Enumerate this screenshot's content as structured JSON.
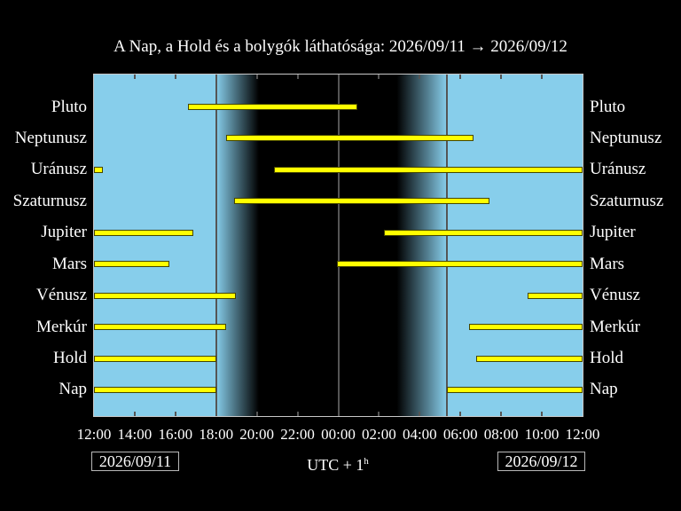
{
  "title": "A Nap, a Hold és a bolygók láthatósága: 2026/09/11 → 2026/09/12",
  "chart_data": {
    "type": "bar",
    "subtype": "horizontal-visibility-intervals",
    "title": "A Nap, a Hold és a bolygók láthatósága: 2026/09/11 → 2026/09/12",
    "x_axis": {
      "tick_labels": [
        "12:00",
        "14:00",
        "16:00",
        "18:00",
        "20:00",
        "22:00",
        "00:00",
        "02:00",
        "04:00",
        "06:00",
        "08:00",
        "10:00",
        "12:00"
      ],
      "left_edge_time": "12:00",
      "hours_span": 24,
      "timezone": "UTC + 1h"
    },
    "rows": [
      {
        "name": "Pluto",
        "intervals_h": [
          [
            4.6,
            12.93
          ]
        ]
      },
      {
        "name": "Neptunusz",
        "intervals_h": [
          [
            6.47,
            18.66
          ]
        ]
      },
      {
        "name": "Uránusz",
        "intervals_h": [
          [
            0,
            0.43
          ],
          [
            8.85,
            24
          ]
        ]
      },
      {
        "name": "Szaturnusz",
        "intervals_h": [
          [
            6.9,
            19.44
          ]
        ]
      },
      {
        "name": "Jupiter",
        "intervals_h": [
          [
            0,
            4.86
          ],
          [
            14.24,
            24
          ]
        ]
      },
      {
        "name": "Mars",
        "intervals_h": [
          [
            0,
            3.69
          ],
          [
            11.93,
            24
          ]
        ]
      },
      {
        "name": "Vénusz",
        "intervals_h": [
          [
            0,
            6.99
          ],
          [
            21.31,
            24
          ]
        ]
      },
      {
        "name": "Merkúr",
        "intervals_h": [
          [
            0,
            6.51
          ],
          [
            18.44,
            24
          ]
        ]
      },
      {
        "name": "Hold",
        "intervals_h": [
          [
            0,
            5.99
          ],
          [
            18.79,
            24
          ]
        ]
      },
      {
        "name": "Nap",
        "intervals_h": [
          [
            0,
            5.99
          ],
          [
            17.32,
            24
          ]
        ]
      }
    ],
    "background": {
      "day_color": "#87ceeb",
      "night_color": "#000000",
      "day_until_h": 5.99,
      "night_from_h": 8.1,
      "night_until_h": 14.88,
      "day_from_h": 17.32
    },
    "guide_lines_h": [
      5.99,
      12,
      17.32
    ],
    "bar_color": "#ffff00",
    "bar_border_color": "#454500",
    "frame_color": "#c8c8c8",
    "line_color": "#555555",
    "text_color": "#ffffff"
  },
  "footer": {
    "date_left": "2026/09/11",
    "date_right": "2026/09/12",
    "timezone_base": "UTC + 1",
    "timezone_sup": "h"
  }
}
